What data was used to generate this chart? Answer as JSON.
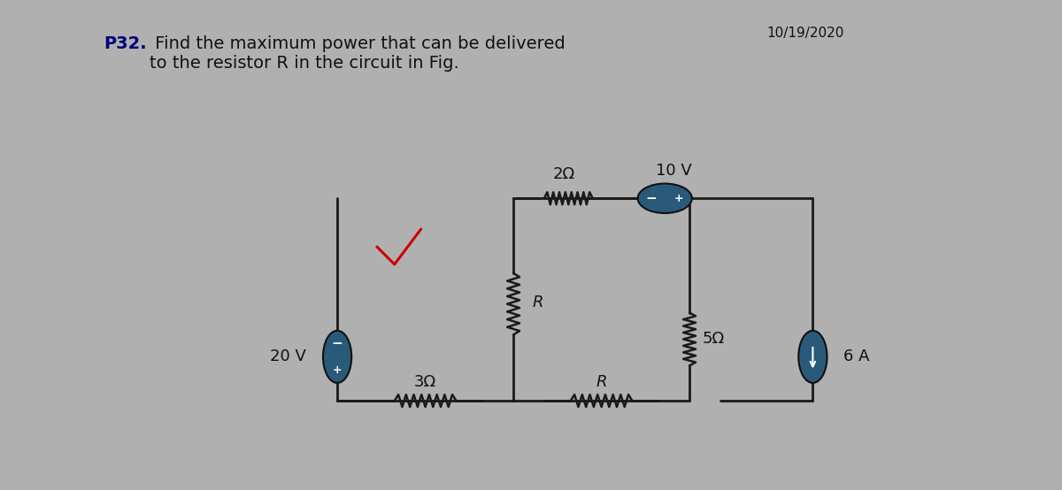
{
  "title_date": "10/19/2020",
  "problem_text_bold": "P32.",
  "problem_text": " Find the maximum power that can be delivered\nto the resistor R in the circuit in Fig.",
  "bg_color": "#b0b0b0",
  "circuit_color": "#2a5a7a",
  "wire_color": "#1a1a1a",
  "resistor_color": "#1a1a1a",
  "source_color": "#2a5a7a",
  "label_2ohm": "2Ω",
  "label_3ohm": "3Ω",
  "label_5ohm": "5Ω",
  "label_R": "R",
  "label_10V": "10 V",
  "label_20V": "20 V",
  "label_6A": "6 A",
  "red_check_color": "#cc0000",
  "font_size_labels": 13,
  "font_size_title": 11,
  "font_size_problem": 14
}
